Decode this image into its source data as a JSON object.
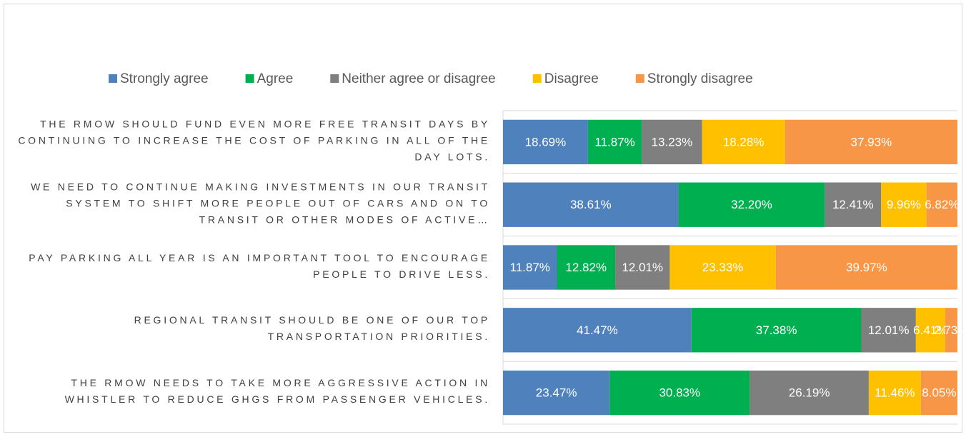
{
  "chart_data": {
    "type": "bar",
    "orientation": "horizontal",
    "stacked": true,
    "categories": [
      "THE RMOW SHOULD FUND EVEN MORE FREE TRANSIT DAYS BY CONTINUING TO INCREASE THE COST OF PARKING IN ALL OF THE DAY LOTS.",
      "WE NEED TO CONTINUE MAKING INVESTMENTS IN OUR TRANSIT SYSTEM TO SHIFT MORE PEOPLE OUT OF CARS AND ON TO TRANSIT OR OTHER MODES OF ACTIVE…",
      "PAY PARKING ALL YEAR IS AN IMPORTANT TOOL TO ENCOURAGE PEOPLE TO DRIVE LESS.",
      "REGIONAL TRANSIT SHOULD BE ONE OF OUR TOP TRANSPORTATION PRIORITIES.",
      "THE RMOW NEEDS TO TAKE MORE AGGRESSIVE ACTION IN WHISTLER TO REDUCE GHGS FROM PASSENGER VEHICLES."
    ],
    "series": [
      {
        "name": "Strongly agree",
        "color": "#4f81bd",
        "values": [
          18.69,
          38.61,
          11.87,
          41.47,
          23.47
        ],
        "value_labels": [
          "18.69%",
          "38.61%",
          "11.87%",
          "41.47%",
          "23.47%"
        ]
      },
      {
        "name": "Agree",
        "color": "#00b050",
        "values": [
          11.87,
          32.2,
          12.82,
          37.38,
          30.83
        ],
        "value_labels": [
          "11.87%",
          "32.20%",
          "12.82%",
          "37.38%",
          "30.83%"
        ]
      },
      {
        "name": "Neither agree or disagree",
        "color": "#7f7f7f",
        "values": [
          13.23,
          12.41,
          12.01,
          12.01,
          26.19
        ],
        "value_labels": [
          "13.23%",
          "12.41%",
          "12.01%",
          "12.01%",
          "26.19%"
        ]
      },
      {
        "name": "Disagree",
        "color": "#ffc000",
        "values": [
          18.28,
          9.96,
          23.33,
          6.41,
          11.46
        ],
        "value_labels": [
          "18.28%",
          "9.96%",
          "23.33%",
          "6.41%",
          "11.46%"
        ]
      },
      {
        "name": "Strongly disagree",
        "color": "#f79646",
        "values": [
          37.93,
          6.82,
          39.97,
          2.73,
          8.05
        ],
        "value_labels": [
          "37.93%",
          "6.82%",
          "39.97%",
          "2.73%",
          "8.05%"
        ]
      }
    ],
    "xlim": [
      0,
      100
    ],
    "legend": "top",
    "grid": true
  }
}
